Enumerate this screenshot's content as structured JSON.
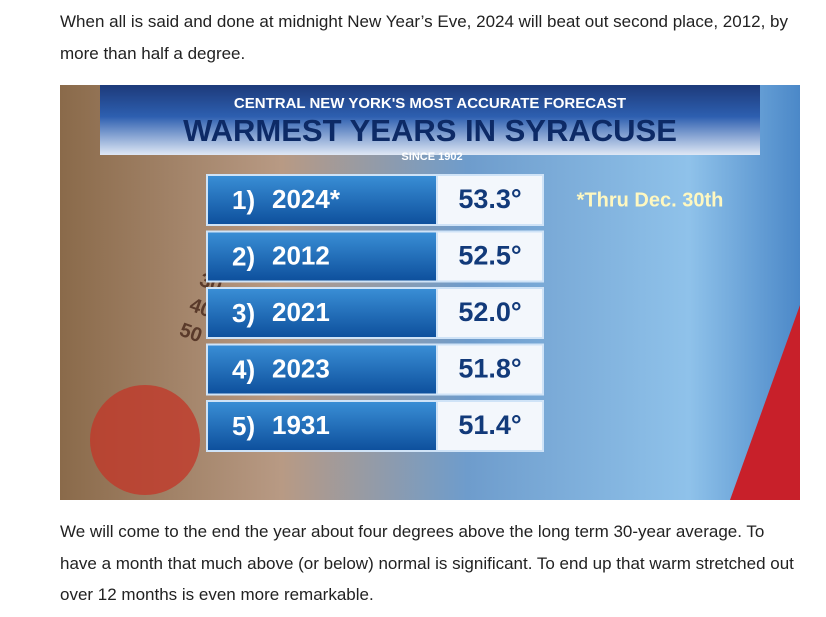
{
  "paragraphs": [
    "When all is said and done at midnight New Year’s Eve, 2024 will beat out second place, 2012, by more than half a degree.",
    "We will come to the end the year about four degrees above the long term 30-year average. To have a month that much above (or below) normal is significant. To end up that warm stretched out over 12 months is even more remarkable."
  ],
  "graphic": {
    "header": "CENTRAL NEW YORK'S MOST ACCURATE FORECAST",
    "title": "WARMEST YEARS IN SYRACUSE",
    "subtitle": "SINCE 1902",
    "note": "*Thru Dec. 30th",
    "thermometer_labels": [
      "30",
      "40",
      "50"
    ],
    "rows": [
      [
        "1)",
        "2024*",
        "53.3°"
      ],
      [
        "2)",
        "2012",
        "52.5°"
      ],
      [
        "3)",
        "2021",
        "52.0°"
      ],
      [
        "4)",
        "2023",
        "51.8°"
      ],
      [
        "5)",
        "1931",
        "51.4°"
      ]
    ]
  }
}
